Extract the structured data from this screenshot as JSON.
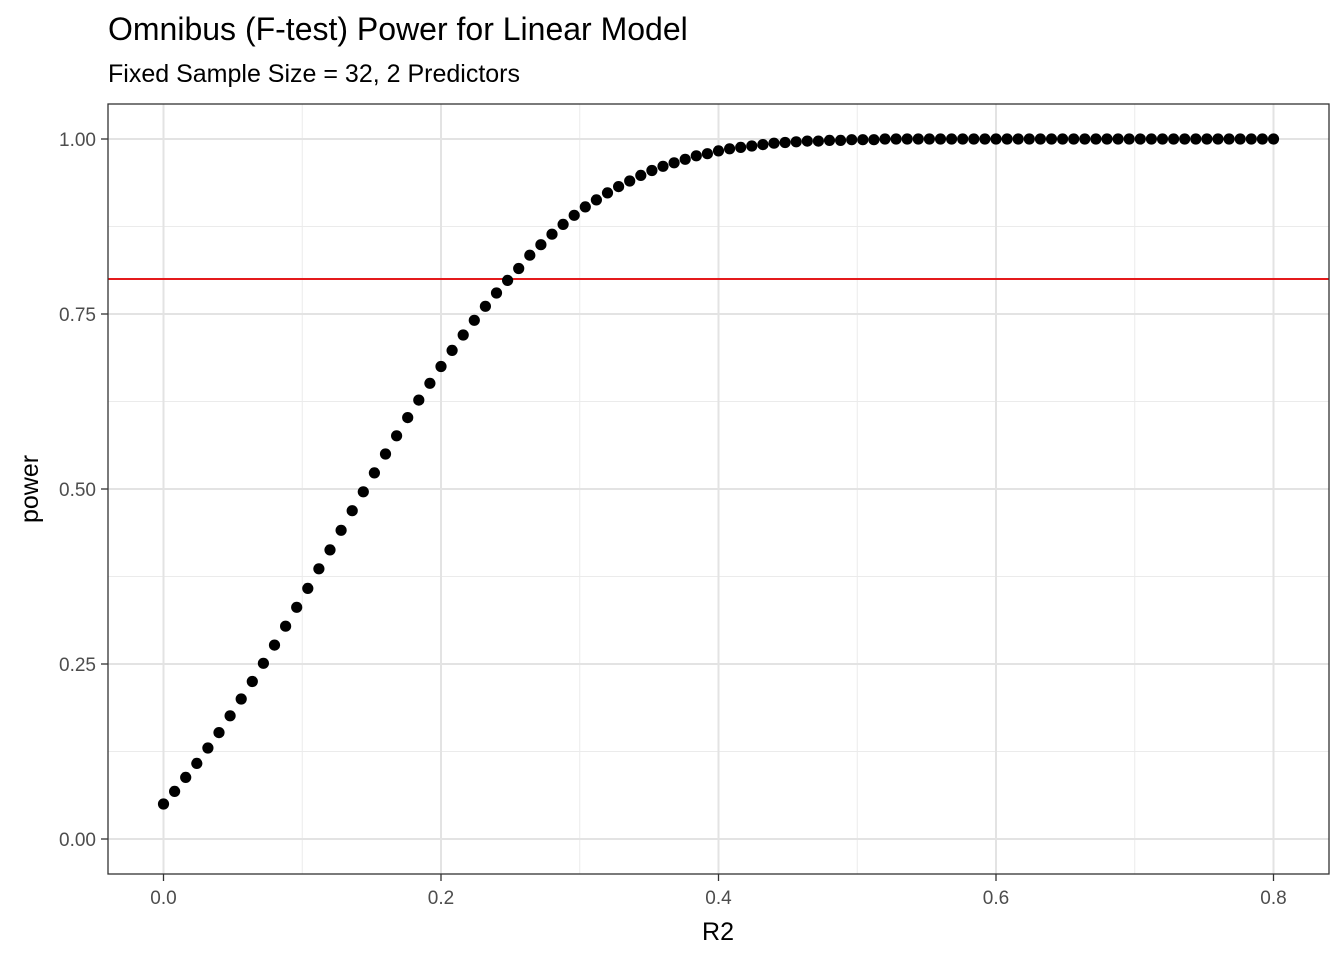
{
  "chart_data": {
    "type": "scatter",
    "title": "Omnibus (F-test) Power for Linear Model",
    "subtitle": "Fixed Sample Size = 32, 2 Predictors",
    "xlabel": "R2",
    "ylabel": "power",
    "xlim": [
      -0.04,
      0.84
    ],
    "ylim": [
      -0.05,
      1.05
    ],
    "x_ticks": [
      0,
      0.2,
      0.4,
      0.6,
      0.8
    ],
    "x_tick_labels": [
      "0.0",
      "0.2",
      "0.4",
      "0.6",
      "0.8"
    ],
    "y_ticks": [
      0,
      0.25,
      0.5,
      0.75,
      1
    ],
    "y_tick_labels": [
      "0.00",
      "0.25",
      "0.50",
      "0.75",
      "1.00"
    ],
    "grid": true,
    "legend": "none",
    "reference_line": {
      "orientation": "horizontal",
      "y": 0.8,
      "color": "#e41a1c"
    },
    "point_color": "#000000",
    "series": [
      {
        "x": [
          0,
          0.008,
          0.016,
          0.024,
          0.032,
          0.04,
          0.048,
          0.056,
          0.064,
          0.072,
          0.08,
          0.088,
          0.096,
          0.104,
          0.112,
          0.12,
          0.128,
          0.136,
          0.144,
          0.152,
          0.16,
          0.168,
          0.176,
          0.184,
          0.192,
          0.2,
          0.208,
          0.216,
          0.224,
          0.232,
          0.24,
          0.248,
          0.256,
          0.264,
          0.272,
          0.28,
          0.288,
          0.296,
          0.304,
          0.312,
          0.32,
          0.328,
          0.336,
          0.344,
          0.352,
          0.36,
          0.368,
          0.376,
          0.384,
          0.392,
          0.4,
          0.408,
          0.416,
          0.424,
          0.432,
          0.44,
          0.448,
          0.456,
          0.464,
          0.472,
          0.48,
          0.488,
          0.496,
          0.504,
          0.512,
          0.52,
          0.528,
          0.536,
          0.544,
          0.552,
          0.56,
          0.568,
          0.576,
          0.584,
          0.592,
          0.6,
          0.608,
          0.616,
          0.624,
          0.632,
          0.64,
          0.648,
          0.656,
          0.664,
          0.672,
          0.68,
          0.688,
          0.696,
          0.704,
          0.712,
          0.72,
          0.728,
          0.736,
          0.744,
          0.752,
          0.76,
          0.768,
          0.776,
          0.784,
          0.792,
          0.8
        ],
        "values": [
          0.05,
          0.068,
          0.088,
          0.108,
          0.13,
          0.152,
          0.176,
          0.2,
          0.225,
          0.251,
          0.277,
          0.304,
          0.331,
          0.358,
          0.386,
          0.413,
          0.441,
          0.469,
          0.496,
          0.523,
          0.55,
          0.576,
          0.602,
          0.627,
          0.651,
          0.675,
          0.698,
          0.72,
          0.741,
          0.761,
          0.78,
          0.798,
          0.815,
          0.834,
          0.849,
          0.864,
          0.878,
          0.891,
          0.903,
          0.913,
          0.923,
          0.932,
          0.94,
          0.948,
          0.955,
          0.961,
          0.966,
          0.971,
          0.976,
          0.979,
          0.983,
          0.986,
          0.988,
          0.99,
          0.992,
          0.994,
          0.995,
          0.996,
          0.997,
          0.997,
          0.998,
          0.998,
          0.999,
          0.999,
          0.999,
          1,
          1,
          1,
          1,
          1,
          1,
          1,
          1,
          1,
          1,
          1,
          1,
          1,
          1,
          1,
          1,
          1,
          1,
          1,
          1,
          1,
          1,
          1,
          1,
          1,
          1,
          1,
          1,
          1,
          1,
          1,
          1,
          1,
          1,
          1,
          1
        ]
      }
    ]
  }
}
